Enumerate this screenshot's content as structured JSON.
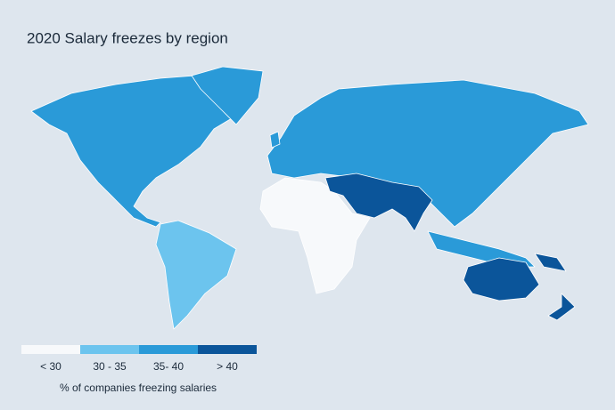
{
  "header": {
    "title": "2020 Salary freezes by region"
  },
  "legend": {
    "title": "% of companies freezing salaries",
    "items": [
      {
        "label": "< 30",
        "color": "#f7f9fb"
      },
      {
        "label": "30 - 35",
        "color": "#6cc4ee"
      },
      {
        "label": "35- 40",
        "color": "#2a9ad8"
      },
      {
        "label": "> 40",
        "color": "#0b559a"
      }
    ]
  }
}
